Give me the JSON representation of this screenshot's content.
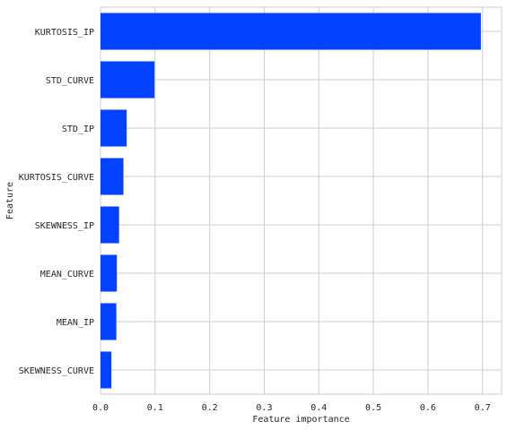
{
  "chart_data": {
    "type": "bar",
    "orientation": "horizontal",
    "categories": [
      "KURTOSIS_IP",
      "STD_CURVE",
      "STD_IP",
      "KURTOSIS_CURVE",
      "SKEWNESS_IP",
      "MEAN_CURVE",
      "MEAN_IP",
      "SKEWNESS_CURVE"
    ],
    "values": [
      0.697,
      0.099,
      0.048,
      0.042,
      0.034,
      0.03,
      0.029,
      0.02
    ],
    "xlabel": "Feature importance",
    "ylabel": "Feature",
    "xlim": [
      0,
      0.735
    ],
    "xticks": [
      "0.0",
      "0.1",
      "0.2",
      "0.3",
      "0.4",
      "0.5",
      "0.6",
      "0.7"
    ],
    "grid": true,
    "bar_color": "#0343ff",
    "grid_color": "#cccccc"
  }
}
